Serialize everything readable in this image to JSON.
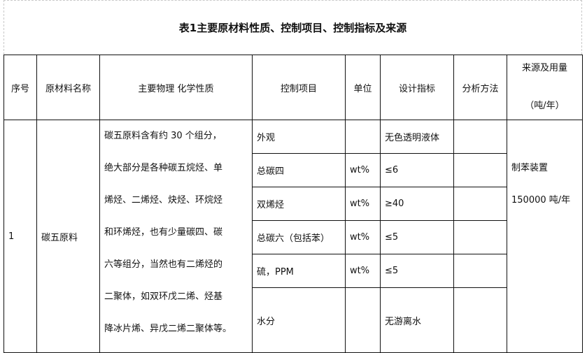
{
  "title": "表1主要原材料性质、控制项目、控制指标及来源",
  "headers": {
    "seq": "序号",
    "material": "原材料名称",
    "properties": "主要物理 化学性质",
    "control_item": "控制项目",
    "unit": "单位",
    "design_index": "设计指标",
    "analysis_method": "分析方法",
    "source_line1": "来源及用量",
    "source_line2": "（吨/年）"
  },
  "row": {
    "seq": "1",
    "material": "碳五原料",
    "properties_lines": [
      "碳五原料含有约 30 个组分，",
      "绝大部分是各种碳五烷烃、单",
      "烯烃、二烯烃、炔烃、环烷烃",
      "和环烯烃，也有少量碳四、碳",
      "六等组分，当然也有二烯烃的",
      "二聚体，如双环戊二烯、烃基",
      "降冰片烯、异戊二烯二聚体等。"
    ],
    "source_lines": [
      "制苯装置",
      "150000 吨/年"
    ],
    "controls": [
      {
        "item": "外观",
        "unit": "",
        "index": "无色透明液体",
        "method": ""
      },
      {
        "item": "总碳四",
        "unit": "wt%",
        "index": "≤6",
        "method": ""
      },
      {
        "item": "双烯烃",
        "unit": "wt%",
        "index": "≥40",
        "method": ""
      },
      {
        "item": "总碳六（包括苯）",
        "unit": "wt%",
        "index": "≤5",
        "method": ""
      },
      {
        "item": "硫，PPM",
        "unit": "wt%",
        "index": "≤5",
        "method": ""
      },
      {
        "item": "水分",
        "unit": "",
        "index": "无游离水",
        "method": ""
      }
    ]
  }
}
